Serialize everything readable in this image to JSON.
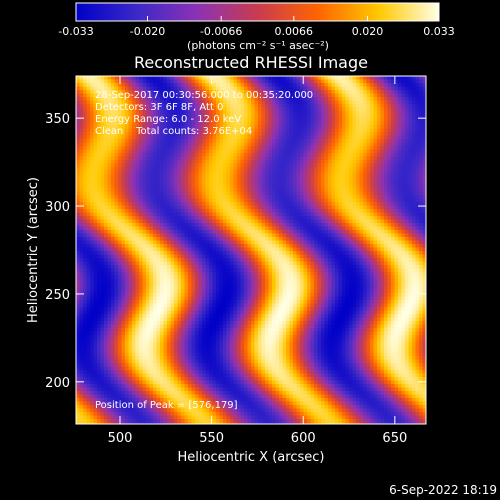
{
  "chart_data": {
    "type": "heatmap",
    "title": "Reconstructed RHESSI Image",
    "xlabel": "Heliocentric X (arcsec)",
    "ylabel": "Heliocentric Y (arcsec)",
    "xlim": [
      476,
      667
    ],
    "ylim": [
      176,
      374
    ],
    "x_ticks": [
      500,
      550,
      600,
      650
    ],
    "y_ticks": [
      200,
      250,
      300,
      350
    ],
    "colorbar": {
      "ticks": [
        "-0.033",
        "-0.020",
        "-0.0066",
        "0.0066",
        "0.020",
        "0.033"
      ],
      "tick_values": [
        -0.033,
        -0.02,
        -0.0066,
        0.0066,
        0.02,
        0.033
      ],
      "range": [
        -0.033,
        0.033
      ],
      "label": "(photons cm⁻² s⁻¹ asec⁻²)",
      "colormap": [
        "#0000c8",
        "#3c28c8",
        "#8c32b4",
        "#c83c50",
        "#ff6400",
        "#ffc800",
        "#ffffe6"
      ]
    },
    "annotations": [
      "28-Sep-2017 00:30:56.000 to 00:35:20.000",
      "Detectors: 3F 6F 8F, Att 0",
      "Energy Range: 6.0 - 12.0 keV",
      "Clean    Total counts: 3.76E+04"
    ],
    "peak_label": "Position of Peak = [576,179]",
    "peak": {
      "x": 576,
      "y": 179
    },
    "grid": false,
    "pattern": {
      "description_free": true,
      "stripe_period_arcsec": 68,
      "stripe_tilt": 0.3,
      "wobble_amplitude_arcsec": 12,
      "wobble_period_arcsec": 95
    }
  },
  "timestamp": "6-Sep-2022 18:19"
}
